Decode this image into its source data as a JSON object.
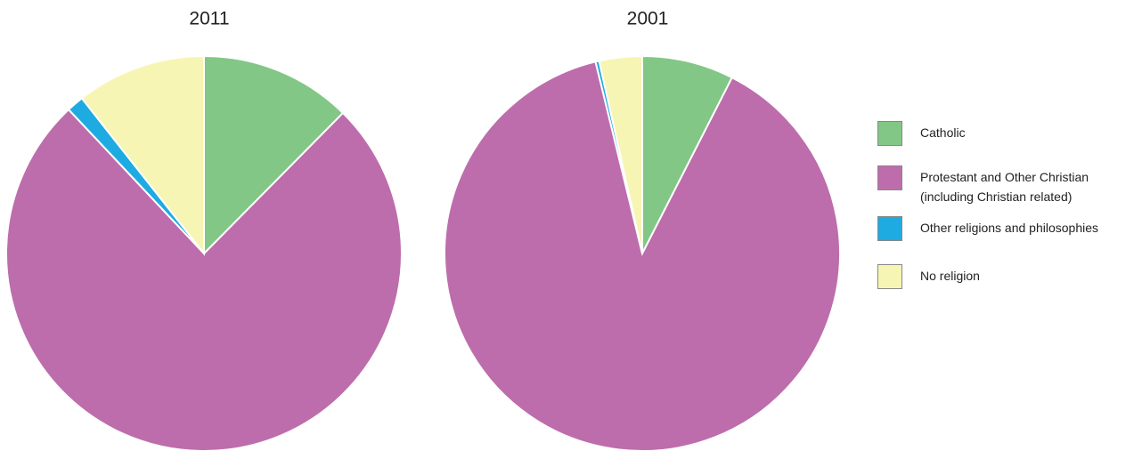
{
  "chart_data": [
    {
      "type": "pie",
      "title": "2011",
      "categories": [
        "Catholic",
        "Protestant and Other Christian (including Christian related)",
        "Other religions and philosophies",
        "No religion"
      ],
      "values": [
        12.4,
        75.6,
        1.4,
        10.6
      ],
      "colors": [
        "#82c785",
        "#bd6dab",
        "#1eabe2",
        "#f7f5b3"
      ]
    },
    {
      "type": "pie",
      "title": "2001",
      "categories": [
        "Catholic",
        "Protestant and Other Christian (including Christian related)",
        "Other religions and philosophies",
        "No religion"
      ],
      "values": [
        7.5,
        88.7,
        0.3,
        3.5
      ],
      "colors": [
        "#82c785",
        "#bd6dab",
        "#1eabe2",
        "#f7f5b3"
      ]
    }
  ]
}
